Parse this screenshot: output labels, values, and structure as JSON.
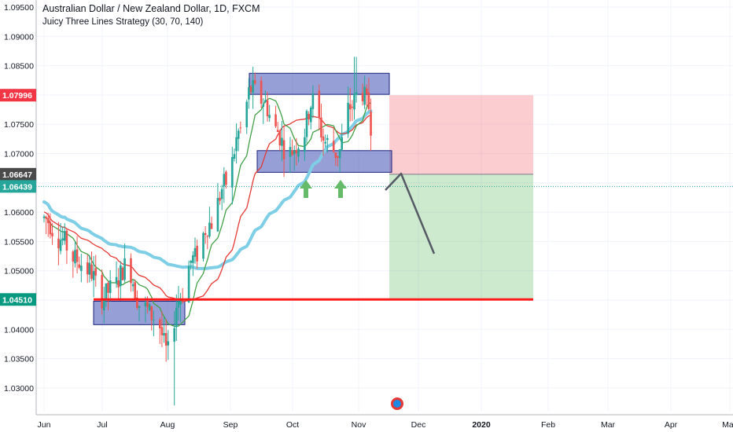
{
  "chart_data": {
    "type": "candlestick",
    "title": "Australian Dollar / New Zealand Dollar, 1D, FXCM",
    "subtitle": "Juicy Three Lines Strategy (30, 70, 140)",
    "x_tick_labels": [
      "Jun",
      "Jul",
      "Aug",
      "Sep",
      "Oct",
      "Nov",
      "Dec",
      "2020",
      "Feb",
      "Mar",
      "Apr",
      "May"
    ],
    "y_ticks": [
      1.03,
      1.035,
      1.04,
      1.045,
      1.05,
      1.055,
      1.06,
      1.065,
      1.07,
      1.075,
      1.08,
      1.085,
      1.09,
      1.095
    ],
    "y_tick_labels": [
      "1.03000",
      "1.03500",
      "1.04000",
      "1.04500",
      "1.05000",
      "1.05500",
      "1.06000",
      "1.06500",
      "1.07000",
      "1.07500",
      "1.08000",
      "1.08500",
      "1.09000",
      "1.09500"
    ],
    "ylim": [
      1.024,
      1.097
    ],
    "price_tags": [
      {
        "label": "1.07996",
        "value": 1.07996,
        "color": "#f23645"
      },
      {
        "label": "1.06647",
        "value": 1.06647,
        "color": "#4a4a4a"
      },
      {
        "label": "1.06439",
        "value": 1.06439,
        "color": "#26a69a"
      },
      {
        "label": "1.04510",
        "value": 1.0451,
        "color": "#089981"
      }
    ],
    "current_price": 1.06439,
    "support_line": 1.0451,
    "position": {
      "entry": 1.06647,
      "stop": 1.07996,
      "target": 1.0451
    },
    "grid": true,
    "up_color": "#26a69a",
    "down_color": "#ef5350",
    "ma_colors": {
      "ma30": "#43a047",
      "ma70": "#e53935",
      "ma140": "#7ecfe6"
    },
    "zones": [
      {
        "name": "upper-resistance",
        "low": 1.0801,
        "high": 1.0837
      },
      {
        "name": "middle-zone",
        "low": 1.0668,
        "high": 1.0705
      },
      {
        "name": "lower-support",
        "low": 1.0408,
        "high": 1.0448
      }
    ]
  }
}
